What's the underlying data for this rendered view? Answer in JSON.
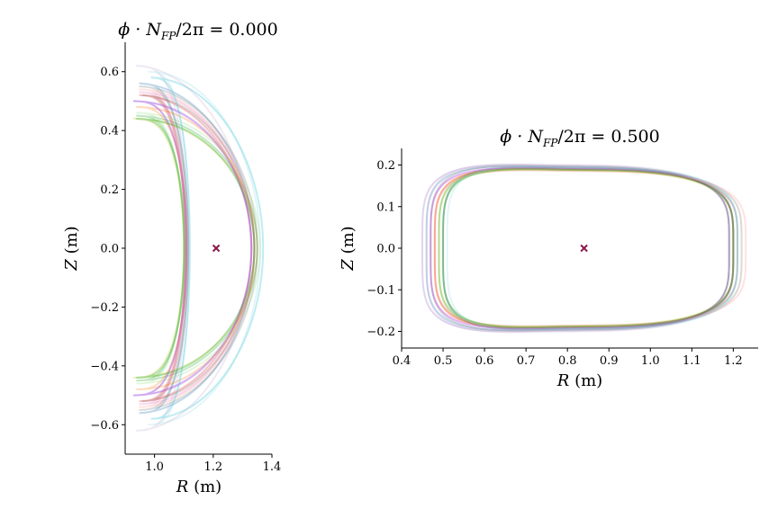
{
  "chart_data": [
    {
      "type": "line",
      "title": "ϕ · N_FP/2π = 0.000",
      "title_display": {
        "prefix": "ϕ · N",
        "sub": "FP",
        "suffix": "/2π = 0.000"
      },
      "xlabel": {
        "var": "R",
        "unit": " (m)"
      },
      "ylabel": {
        "var": "Z",
        "unit": " (m)"
      },
      "xlim": [
        0.9,
        1.4
      ],
      "ylim": [
        -0.7,
        0.7
      ],
      "xticks": [
        1.0,
        1.2,
        1.4
      ],
      "xtick_labels": [
        "1.0",
        "1.2",
        "1.4"
      ],
      "yticks": [
        -0.6,
        -0.4,
        -0.2,
        0.0,
        0.2,
        0.4,
        0.6
      ],
      "ytick_labels": [
        "−0.6",
        "−0.4",
        "−0.2",
        "0.0",
        "0.2",
        "0.4",
        "0.6"
      ],
      "axis": {
        "R0": 1.21,
        "Z0": 0.0,
        "marker": "x"
      },
      "shape": "crescent",
      "series": [
        {
          "color": "#1f77b4",
          "params": [
            1.115,
            1.34,
            0.95,
            0.56,
            0.5
          ]
        },
        {
          "color": "#2ca02c",
          "params": [
            1.1,
            1.35,
            0.94,
            0.45,
            0.42
          ]
        },
        {
          "color": "#d62728",
          "params": [
            1.105,
            1.33,
            0.95,
            0.52,
            0.47
          ]
        },
        {
          "color": "#9467bd",
          "params": [
            1.11,
            1.33,
            0.93,
            0.5,
            0.48
          ]
        },
        {
          "color": "#17becf",
          "params": [
            1.12,
            1.37,
            0.99,
            0.58,
            0.53
          ]
        },
        {
          "color": "#bcbd22",
          "params": [
            1.1,
            1.35,
            0.93,
            0.44,
            0.41
          ]
        },
        {
          "color": "#e377c2",
          "params": [
            1.105,
            1.33,
            0.95,
            0.53,
            0.5
          ]
        },
        {
          "color": "#ff7f0e",
          "params": [
            1.11,
            1.34,
            0.94,
            0.48,
            0.46
          ]
        },
        {
          "color": "#8c564b",
          "params": [
            1.11,
            1.34,
            0.96,
            0.52,
            0.47
          ]
        },
        {
          "color": "#7f7f7f",
          "params": [
            1.115,
            1.35,
            0.95,
            0.55,
            0.49
          ]
        },
        {
          "color": "#98df8a",
          "params": [
            1.1,
            1.36,
            0.94,
            0.46,
            0.43
          ]
        },
        {
          "color": "#ff9896",
          "params": [
            1.105,
            1.34,
            0.95,
            0.54,
            0.49
          ]
        },
        {
          "color": "#c5b0d5",
          "params": [
            1.115,
            1.33,
            0.94,
            0.62,
            0.55
          ]
        },
        {
          "color": "#9edae5",
          "params": [
            1.12,
            1.36,
            0.98,
            0.6,
            0.56
          ]
        },
        {
          "color": "#aa40fc",
          "params": [
            1.108,
            1.33,
            0.93,
            0.5,
            0.47
          ]
        },
        {
          "color": "#00aa00",
          "params": [
            1.102,
            1.34,
            0.94,
            0.44,
            0.42
          ]
        }
      ]
    },
    {
      "type": "line",
      "title": "ϕ · N_FP/2π = 0.500",
      "title_display": {
        "prefix": "ϕ · N",
        "sub": "FP",
        "suffix": "/2π = 0.500"
      },
      "xlabel": {
        "var": "R",
        "unit": " (m)"
      },
      "ylabel": {
        "var": "Z",
        "unit": " (m)"
      },
      "xlim": [
        0.4,
        1.26
      ],
      "ylim": [
        -0.24,
        0.24
      ],
      "xticks": [
        0.4,
        0.5,
        0.6,
        0.7,
        0.8,
        0.9,
        1.0,
        1.1,
        1.2
      ],
      "xtick_labels": [
        "0.4",
        "0.5",
        "0.6",
        "0.7",
        "0.8",
        "0.9",
        "1.0",
        "1.1",
        "1.2"
      ],
      "yticks": [
        -0.2,
        -0.1,
        0.0,
        0.1,
        0.2
      ],
      "ytick_labels": [
        "−0.2",
        "−0.1",
        "0.0",
        "0.1",
        "0.2"
      ],
      "axis": {
        "R0": 0.84,
        "Z0": 0.0,
        "marker": "x"
      },
      "shape": "lens",
      "series": [
        {
          "color": "#1f77b4",
          "params": [
            0.46,
            1.19,
            0.195
          ]
        },
        {
          "color": "#2ca02c",
          "params": [
            0.49,
            1.2,
            0.19
          ]
        },
        {
          "color": "#d62728",
          "params": [
            0.48,
            1.21,
            0.188
          ]
        },
        {
          "color": "#9467bd",
          "params": [
            0.45,
            1.19,
            0.198
          ]
        },
        {
          "color": "#17becf",
          "params": [
            0.5,
            1.21,
            0.192
          ]
        },
        {
          "color": "#bcbd22",
          "params": [
            0.49,
            1.2,
            0.186
          ]
        },
        {
          "color": "#e377c2",
          "params": [
            0.47,
            1.22,
            0.19
          ]
        },
        {
          "color": "#ff7f0e",
          "params": [
            0.48,
            1.2,
            0.189
          ]
        },
        {
          "color": "#8c564b",
          "params": [
            0.5,
            1.19,
            0.193
          ]
        },
        {
          "color": "#7f7f7f",
          "params": [
            0.47,
            1.2,
            0.196
          ]
        },
        {
          "color": "#98df8a",
          "params": [
            0.49,
            1.22,
            0.187
          ]
        },
        {
          "color": "#ff9896",
          "params": [
            0.48,
            1.23,
            0.185
          ]
        },
        {
          "color": "#c5b0d5",
          "params": [
            0.46,
            1.19,
            0.2
          ]
        },
        {
          "color": "#9edae5",
          "params": [
            0.51,
            1.21,
            0.194
          ]
        },
        {
          "color": "#aa40fc",
          "params": [
            0.47,
            1.2,
            0.191
          ]
        },
        {
          "color": "#00aa00",
          "params": [
            0.5,
            1.2,
            0.188
          ]
        }
      ]
    }
  ]
}
